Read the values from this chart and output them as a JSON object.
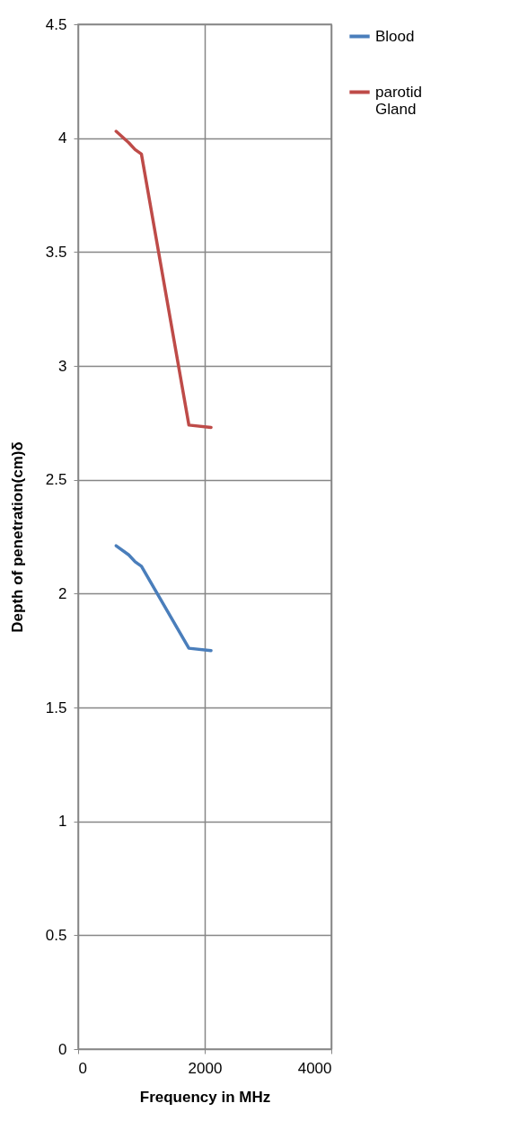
{
  "chart_data": {
    "type": "line",
    "xlabel": "Frequency in MHz",
    "ylabel": "Depth of penetration(cm)δ",
    "x": [
      600,
      800,
      900,
      1000,
      1750,
      2100
    ],
    "series": [
      {
        "name": "Blood",
        "color": "#4a7ebb",
        "values": [
          2.21,
          2.17,
          2.14,
          2.12,
          1.76,
          1.75
        ]
      },
      {
        "name": "parotid Gland",
        "color": "#be4b48",
        "values": [
          4.03,
          3.98,
          3.95,
          3.93,
          2.74,
          2.73
        ]
      }
    ],
    "xlim": [
      0,
      4000
    ],
    "xticks": [
      0,
      2000,
      4000
    ],
    "ylim": [
      0,
      4.5
    ],
    "yticks": [
      0,
      0.5,
      1,
      1.5,
      2,
      2.5,
      3,
      3.5,
      4,
      4.5
    ],
    "grid": true,
    "legend": "right",
    "marker": "none",
    "line_style": "solid"
  }
}
